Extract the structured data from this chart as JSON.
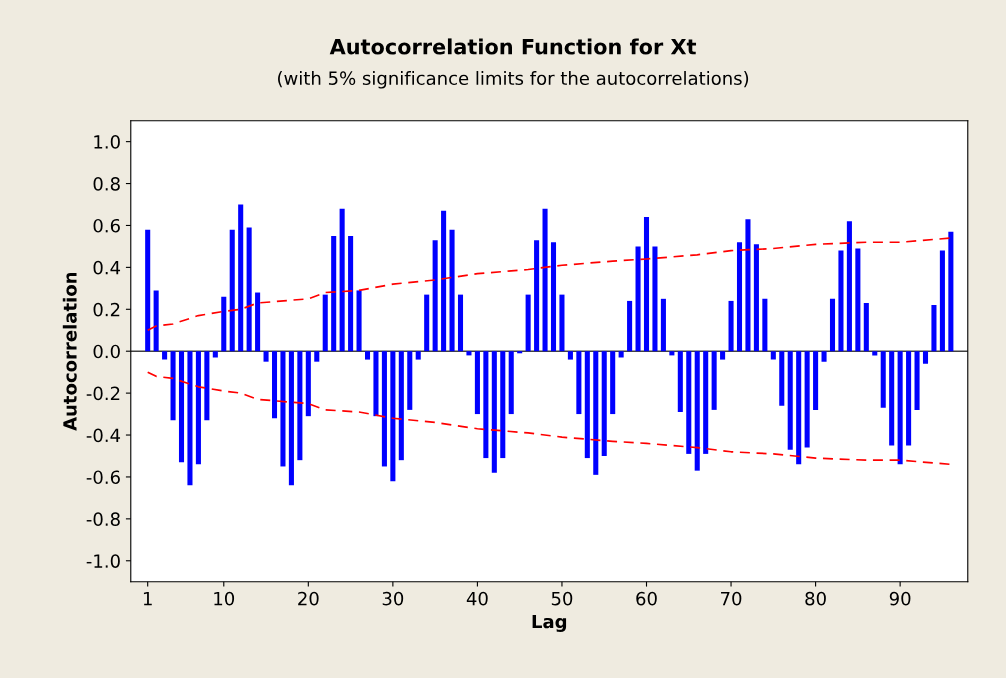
{
  "chart_data": {
    "type": "bar",
    "title": "Autocorrelation Function for Xt",
    "subtitle": "(with 5% significance limits for the autocorrelations)",
    "xlabel": "Lag",
    "ylabel": "Autocorrelation",
    "x": [
      1,
      2,
      3,
      4,
      5,
      6,
      7,
      8,
      9,
      10,
      11,
      12,
      13,
      14,
      15,
      16,
      17,
      18,
      19,
      20,
      21,
      22,
      23,
      24,
      25,
      26,
      27,
      28,
      29,
      30,
      31,
      32,
      33,
      34,
      35,
      36,
      37,
      38,
      39,
      40,
      41,
      42,
      43,
      44,
      45,
      46,
      47,
      48,
      49,
      50,
      51,
      52,
      53,
      54,
      55,
      56,
      57,
      58,
      59,
      60,
      61,
      62,
      63,
      64,
      65,
      66,
      67,
      68,
      69,
      70,
      71,
      72,
      73,
      74,
      75,
      76,
      77,
      78,
      79,
      80,
      81,
      82,
      83,
      84,
      85,
      86,
      87,
      88,
      89,
      90,
      91,
      92,
      93,
      94,
      95,
      96
    ],
    "series": [
      {
        "color": "#0000ff",
        "values": [
          0.58,
          0.29,
          -0.04,
          -0.33,
          -0.53,
          -0.64,
          -0.54,
          -0.33,
          -0.03,
          0.26,
          0.58,
          0.7,
          0.59,
          0.28,
          -0.05,
          -0.32,
          -0.55,
          -0.64,
          -0.52,
          -0.31,
          -0.05,
          0.27,
          0.55,
          0.68,
          0.55,
          0.29,
          -0.04,
          -0.31,
          -0.55,
          -0.62,
          -0.52,
          -0.28,
          -0.04,
          0.27,
          0.53,
          0.67,
          0.58,
          0.27,
          -0.02,
          -0.3,
          -0.51,
          -0.58,
          -0.51,
          -0.3,
          -0.01,
          0.27,
          0.53,
          0.68,
          0.52,
          0.27,
          -0.04,
          -0.3,
          -0.51,
          -0.59,
          -0.5,
          -0.3,
          -0.03,
          0.24,
          0.5,
          0.64,
          0.5,
          0.25,
          -0.02,
          -0.29,
          -0.49,
          -0.57,
          -0.49,
          -0.28,
          -0.04,
          0.24,
          0.52,
          0.63,
          0.51,
          0.25,
          -0.04,
          -0.26,
          -0.47,
          -0.54,
          -0.46,
          -0.28,
          -0.05,
          0.25,
          0.48,
          0.62,
          0.49,
          0.23,
          -0.02,
          -0.27,
          -0.45,
          -0.54,
          -0.45,
          -0.28,
          -0.06,
          0.22,
          0.48,
          0.57
        ]
      },
      {
        "type": "line",
        "color": "#ff0000",
        "line_style": "dashed",
        "x": [
          1,
          2,
          4,
          7,
          10,
          12,
          14,
          20,
          22,
          26,
          30,
          35,
          40,
          46,
          50,
          56,
          60,
          66,
          70,
          75,
          80,
          86,
          90,
          96
        ],
        "values": [
          0.1,
          0.12,
          0.13,
          0.17,
          0.19,
          0.2,
          0.23,
          0.25,
          0.28,
          0.29,
          0.32,
          0.34,
          0.37,
          0.39,
          0.41,
          0.43,
          0.44,
          0.46,
          0.48,
          0.49,
          0.51,
          0.52,
          0.52,
          0.54
        ]
      },
      {
        "type": "line",
        "color": "#ff0000",
        "line_style": "dashed",
        "x": [
          1,
          2,
          4,
          7,
          10,
          12,
          14,
          20,
          22,
          26,
          30,
          35,
          40,
          46,
          50,
          56,
          60,
          66,
          70,
          75,
          80,
          86,
          90,
          96
        ],
        "values": [
          -0.1,
          -0.12,
          -0.13,
          -0.17,
          -0.19,
          -0.2,
          -0.23,
          -0.25,
          -0.28,
          -0.29,
          -0.32,
          -0.34,
          -0.37,
          -0.39,
          -0.41,
          -0.43,
          -0.44,
          -0.46,
          -0.48,
          -0.49,
          -0.51,
          -0.52,
          -0.52,
          -0.54
        ]
      }
    ],
    "xlim": [
      -1,
      98
    ],
    "xticks": [
      1,
      10,
      20,
      30,
      40,
      50,
      60,
      70,
      80,
      90
    ],
    "ylim": [
      -1.1,
      1.1
    ],
    "yticks": [
      {
        "value": -1,
        "label": "-1.0"
      },
      -0.8,
      -0.6,
      -0.4,
      -0.2,
      {
        "value": 0,
        "label": "0.0"
      },
      0.2,
      0.4,
      0.6,
      0.8,
      {
        "value": 1,
        "label": "1.0"
      }
    ],
    "ref_lines": [
      {
        "axis": "y",
        "value": 0,
        "color": "#404040"
      }
    ],
    "grid": false,
    "legend": false
  }
}
